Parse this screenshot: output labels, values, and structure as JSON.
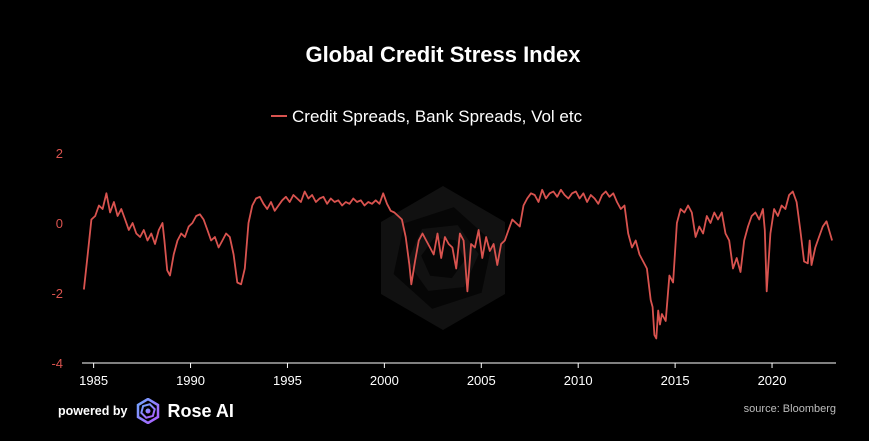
{
  "chart_data": {
    "type": "line",
    "title": "Global Credit Stress Index",
    "xlabel": "",
    "ylabel": "",
    "xlim": [
      1984.4,
      2023.3
    ],
    "ylim": [
      -4,
      2
    ],
    "yticks": [
      2,
      0,
      -2,
      -4
    ],
    "xticks": [
      1985,
      1990,
      1995,
      2000,
      2005,
      2010,
      2015,
      2020
    ],
    "legend_position": "top",
    "grid": false,
    "series": [
      {
        "name": "Credit Spreads, Bank Spreads, Vol etc",
        "color": "#d9534f",
        "points": [
          [
            1984.5,
            -1.9
          ],
          [
            1984.7,
            -0.9
          ],
          [
            1984.9,
            0.1
          ],
          [
            1985.1,
            0.2
          ],
          [
            1985.3,
            0.5
          ],
          [
            1985.5,
            0.4
          ],
          [
            1985.7,
            0.85
          ],
          [
            1985.9,
            0.3
          ],
          [
            1986.1,
            0.6
          ],
          [
            1986.3,
            0.2
          ],
          [
            1986.5,
            0.4
          ],
          [
            1986.7,
            0.1
          ],
          [
            1986.9,
            -0.2
          ],
          [
            1987.1,
            0.0
          ],
          [
            1987.3,
            -0.3
          ],
          [
            1987.5,
            -0.4
          ],
          [
            1987.7,
            -0.2
          ],
          [
            1987.9,
            -0.5
          ],
          [
            1988.1,
            -0.3
          ],
          [
            1988.3,
            -0.6
          ],
          [
            1988.5,
            -0.2
          ],
          [
            1988.7,
            0.0
          ],
          [
            1988.8,
            -0.5
          ],
          [
            1988.95,
            -1.35
          ],
          [
            1989.1,
            -1.5
          ],
          [
            1989.3,
            -0.9
          ],
          [
            1989.5,
            -0.5
          ],
          [
            1989.7,
            -0.3
          ],
          [
            1989.9,
            -0.4
          ],
          [
            1990.1,
            -0.1
          ],
          [
            1990.3,
            0.0
          ],
          [
            1990.5,
            0.2
          ],
          [
            1990.7,
            0.25
          ],
          [
            1990.9,
            0.1
          ],
          [
            1991.1,
            -0.2
          ],
          [
            1991.3,
            -0.5
          ],
          [
            1991.5,
            -0.4
          ],
          [
            1991.7,
            -0.7
          ],
          [
            1991.9,
            -0.5
          ],
          [
            1992.1,
            -0.3
          ],
          [
            1992.3,
            -0.4
          ],
          [
            1992.5,
            -0.9
          ],
          [
            1992.7,
            -1.7
          ],
          [
            1992.9,
            -1.75
          ],
          [
            1993.1,
            -1.3
          ],
          [
            1993.3,
            0.0
          ],
          [
            1993.5,
            0.5
          ],
          [
            1993.7,
            0.7
          ],
          [
            1993.9,
            0.75
          ],
          [
            1994.1,
            0.55
          ],
          [
            1994.3,
            0.4
          ],
          [
            1994.5,
            0.6
          ],
          [
            1994.7,
            0.35
          ],
          [
            1994.9,
            0.5
          ],
          [
            1995.1,
            0.65
          ],
          [
            1995.3,
            0.75
          ],
          [
            1995.5,
            0.6
          ],
          [
            1995.7,
            0.8
          ],
          [
            1995.9,
            0.7
          ],
          [
            1996.1,
            0.6
          ],
          [
            1996.3,
            0.9
          ],
          [
            1996.5,
            0.7
          ],
          [
            1996.7,
            0.8
          ],
          [
            1996.9,
            0.6
          ],
          [
            1997.1,
            0.7
          ],
          [
            1997.3,
            0.75
          ],
          [
            1997.5,
            0.55
          ],
          [
            1997.7,
            0.7
          ],
          [
            1997.9,
            0.6
          ],
          [
            1998.1,
            0.65
          ],
          [
            1998.3,
            0.5
          ],
          [
            1998.5,
            0.6
          ],
          [
            1998.7,
            0.55
          ],
          [
            1998.9,
            0.7
          ],
          [
            1999.1,
            0.6
          ],
          [
            1999.3,
            0.65
          ],
          [
            1999.5,
            0.5
          ],
          [
            1999.7,
            0.6
          ],
          [
            1999.9,
            0.55
          ],
          [
            2000.1,
            0.65
          ],
          [
            2000.3,
            0.55
          ],
          [
            2000.5,
            0.85
          ],
          [
            2000.7,
            0.55
          ],
          [
            2000.9,
            0.35
          ],
          [
            2001.1,
            0.3
          ],
          [
            2001.3,
            0.2
          ],
          [
            2001.5,
            0.1
          ],
          [
            2001.7,
            -0.4
          ],
          [
            2001.9,
            -1.2
          ],
          [
            2002.0,
            -1.75
          ],
          [
            2002.2,
            -1.1
          ],
          [
            2002.4,
            -0.5
          ],
          [
            2002.6,
            -0.3
          ],
          [
            2002.8,
            -0.5
          ],
          [
            2003.0,
            -0.7
          ],
          [
            2003.2,
            -0.9
          ],
          [
            2003.4,
            -0.3
          ],
          [
            2003.6,
            -1.0
          ],
          [
            2003.8,
            -0.4
          ],
          [
            2004.0,
            -0.6
          ],
          [
            2004.2,
            -0.7
          ],
          [
            2004.4,
            -1.3
          ],
          [
            2004.6,
            -0.3
          ],
          [
            2004.8,
            -0.5
          ],
          [
            2005.0,
            -1.95
          ],
          [
            2005.2,
            -0.6
          ],
          [
            2005.4,
            -0.7
          ],
          [
            2005.6,
            -0.2
          ],
          [
            2005.8,
            -1.0
          ],
          [
            2006.0,
            -0.4
          ],
          [
            2006.2,
            -0.8
          ],
          [
            2006.4,
            -0.6
          ],
          [
            2006.6,
            -1.2
          ],
          [
            2006.8,
            -0.6
          ],
          [
            2007.0,
            -0.5
          ],
          [
            2007.2,
            -0.2
          ],
          [
            2007.4,
            0.1
          ],
          [
            2007.6,
            0.0
          ],
          [
            2007.8,
            -0.1
          ],
          [
            2008.0,
            0.5
          ],
          [
            2008.2,
            0.7
          ],
          [
            2008.4,
            0.85
          ],
          [
            2008.6,
            0.8
          ],
          [
            2008.8,
            0.6
          ],
          [
            2009.0,
            0.95
          ],
          [
            2009.2,
            0.7
          ],
          [
            2009.4,
            0.85
          ],
          [
            2009.6,
            0.9
          ],
          [
            2009.8,
            0.75
          ],
          [
            2010.0,
            0.95
          ],
          [
            2010.2,
            0.8
          ],
          [
            2010.4,
            0.7
          ],
          [
            2010.6,
            0.85
          ],
          [
            2010.8,
            0.9
          ],
          [
            2011.0,
            0.7
          ],
          [
            2011.2,
            0.85
          ],
          [
            2011.4,
            0.6
          ],
          [
            2011.6,
            0.8
          ],
          [
            2011.8,
            0.7
          ],
          [
            2012.0,
            0.55
          ],
          [
            2012.2,
            0.8
          ],
          [
            2012.4,
            0.9
          ],
          [
            2012.6,
            0.75
          ],
          [
            2012.8,
            0.85
          ],
          [
            2013.0,
            0.6
          ],
          [
            2013.2,
            0.4
          ],
          [
            2013.4,
            0.5
          ],
          [
            2013.6,
            -0.3
          ],
          [
            2013.8,
            -0.7
          ],
          [
            2014.0,
            -0.5
          ],
          [
            2014.2,
            -0.9
          ],
          [
            2014.4,
            -1.1
          ],
          [
            2014.6,
            -1.3
          ],
          [
            2014.8,
            -2.2
          ],
          [
            2014.9,
            -2.4
          ],
          [
            2015.0,
            -3.2
          ],
          [
            2015.1,
            -3.3
          ],
          [
            2015.2,
            -2.5
          ],
          [
            2015.3,
            -2.9
          ],
          [
            2015.4,
            -2.6
          ],
          [
            2015.6,
            -2.8
          ],
          [
            2015.8,
            -1.5
          ],
          [
            2016.0,
            -1.7
          ],
          [
            2016.2,
            0.0
          ],
          [
            2016.4,
            0.4
          ],
          [
            2016.6,
            0.3
          ],
          [
            2016.8,
            0.5
          ],
          [
            2017.0,
            0.3
          ],
          [
            2017.2,
            -0.4
          ],
          [
            2017.4,
            -0.1
          ],
          [
            2017.6,
            -0.3
          ],
          [
            2017.8,
            0.2
          ],
          [
            2018.0,
            0.0
          ],
          [
            2018.2,
            0.3
          ],
          [
            2018.4,
            0.1
          ],
          [
            2018.6,
            0.3
          ],
          [
            2018.8,
            -0.3
          ],
          [
            2019.0,
            -0.5
          ],
          [
            2019.2,
            -1.3
          ],
          [
            2019.4,
            -1.0
          ],
          [
            2019.6,
            -1.4
          ],
          [
            2019.8,
            -0.5
          ],
          [
            2020.0,
            -0.1
          ],
          [
            2020.2,
            0.2
          ],
          [
            2020.4,
            0.3
          ],
          [
            2020.6,
            0.1
          ],
          [
            2020.8,
            0.4
          ],
          [
            2020.9,
            -0.2
          ],
          [
            2021.0,
            -1.95
          ],
          [
            2021.2,
            -0.3
          ],
          [
            2021.4,
            0.4
          ],
          [
            2021.6,
            0.2
          ],
          [
            2021.8,
            0.5
          ],
          [
            2022.0,
            0.4
          ],
          [
            2022.2,
            0.8
          ],
          [
            2022.4,
            0.9
          ],
          [
            2022.6,
            0.6
          ],
          [
            2022.8,
            -0.2
          ],
          [
            2023.0,
            -1.1
          ],
          [
            2023.2,
            -1.15
          ],
          [
            2023.3,
            -0.5
          ],
          [
            2023.4,
            -1.2
          ],
          [
            2023.6,
            -0.7
          ],
          [
            2023.8,
            -0.4
          ],
          [
            2024.0,
            -0.1
          ],
          [
            2024.2,
            0.05
          ],
          [
            2024.5,
            -0.5
          ]
        ]
      }
    ]
  },
  "footer": {
    "powered_label": "powered by",
    "brand_label": "Rose AI",
    "source_label": "source: Bloomberg",
    "logo_icon": "rose-ai-logo-icon"
  }
}
